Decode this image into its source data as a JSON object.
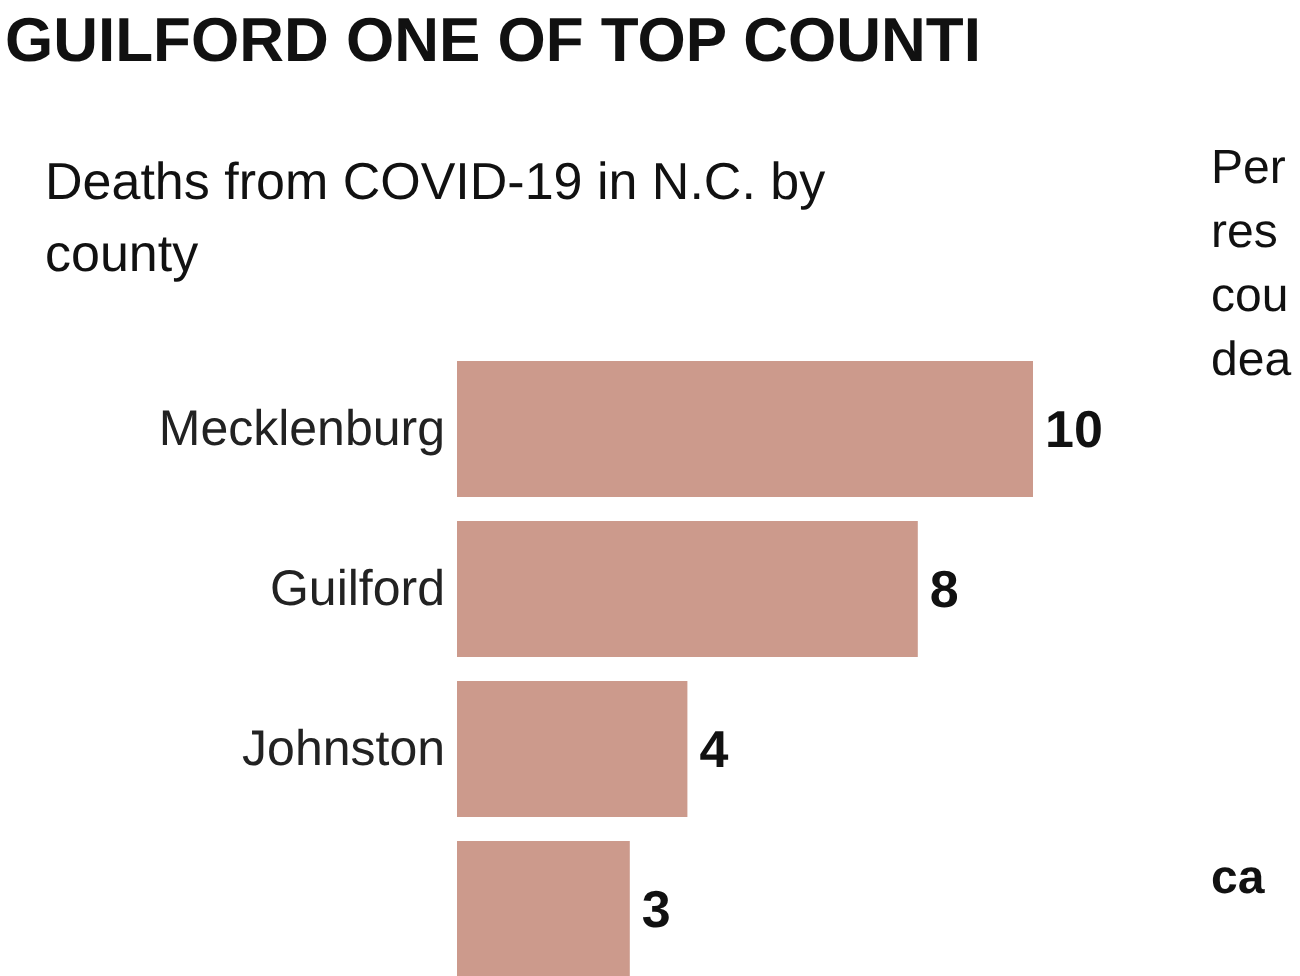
{
  "chart_data": {
    "type": "bar",
    "orientation": "horizontal",
    "title": "GUILFORD ONE OF TOP COUNTI",
    "subtitle": "Deaths from COVID-19 in N.C. by county",
    "categories": [
      "Mecklenburg",
      "Guilford",
      "Johnston",
      null
    ],
    "values": [
      10,
      8,
      4,
      3
    ],
    "color": "#cc9a8c",
    "data_labels": true,
    "annotations": [
      "Per",
      "res",
      "cou",
      "dea",
      "ca"
    ]
  }
}
